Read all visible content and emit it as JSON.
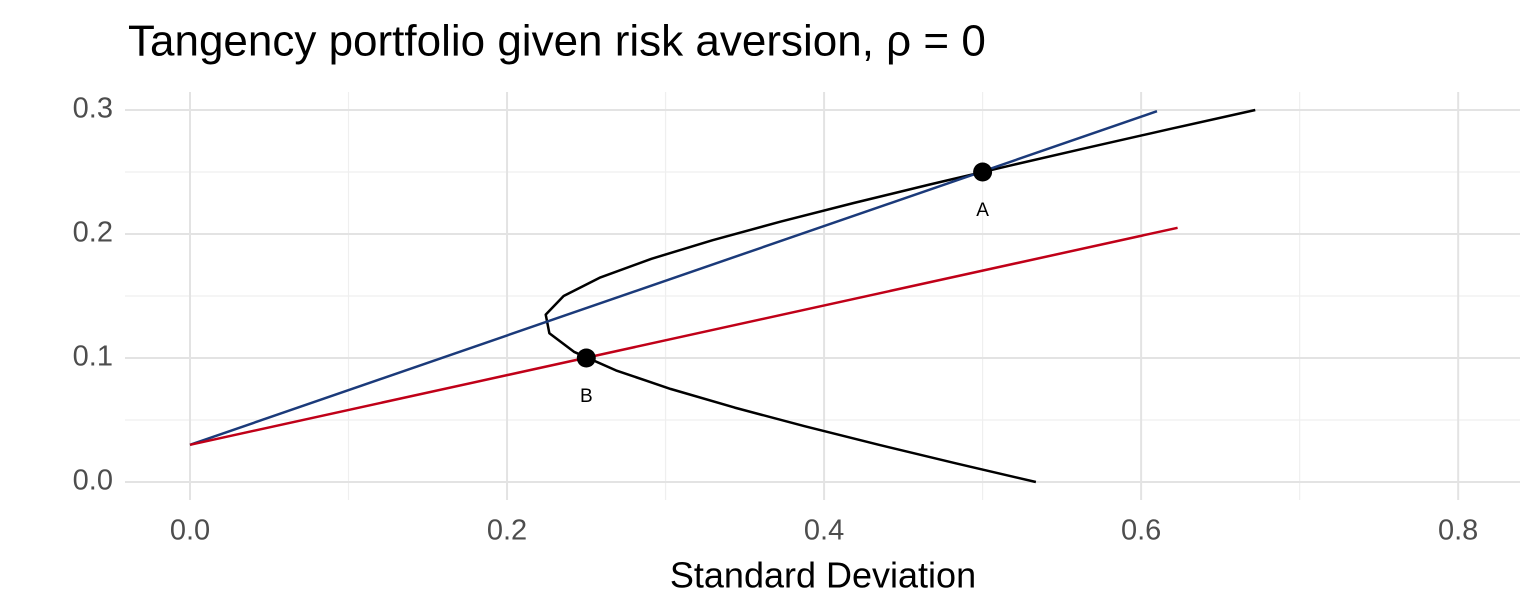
{
  "chart_data": {
    "type": "line",
    "title": "Tangency portfolio given risk aversion, ρ = 0",
    "xlabel": "Standard Deviation",
    "xlim": [
      -0.041,
      0.839
    ],
    "ylim": [
      -0.0145,
      0.3145
    ],
    "xticks": [
      {
        "value": 0,
        "label": "0.0"
      },
      0.2,
      0.4,
      0.6,
      0.8
    ],
    "yticks": [
      {
        "value": 0,
        "label": "0.0"
      },
      0.1,
      0.2,
      0.3
    ],
    "x_minor_ticks": [
      0.1,
      0.3,
      0.5,
      0.7
    ],
    "y_minor_ticks": [
      0.05,
      0.15,
      0.25
    ],
    "grid": true,
    "series": [
      {
        "color": "#000000",
        "x": [
          0.5336,
          0.4834,
          0.4346,
          0.3877,
          0.3436,
          0.3033,
          0.2687,
          0.2422,
          0.2267,
          0.2244,
          0.2357,
          0.2589,
          0.2911,
          0.3297,
          0.3727,
          0.4187,
          0.467,
          0.5167,
          0.5676,
          0.6194,
          0.672
        ],
        "values": [
          0.0,
          0.015,
          0.03,
          0.045,
          0.06,
          0.075,
          0.09,
          0.105,
          0.12,
          0.135,
          0.15,
          0.165,
          0.18,
          0.195,
          0.21,
          0.225,
          0.24,
          0.255,
          0.27,
          0.285,
          0.3
        ]
      },
      {
        "color": "#1b3a7a",
        "x": [
          0,
          0.61
        ],
        "values": [
          0.03,
          0.299
        ]
      },
      {
        "color": "#c00018",
        "x": [
          0,
          0.623
        ],
        "values": [
          0.03,
          0.205
        ]
      }
    ],
    "points": {
      "color": "#000000",
      "x": [
        0.5,
        0.25
      ],
      "values": [
        0.25,
        0.1
      ],
      "labels": [
        "A",
        "B"
      ]
    }
  }
}
